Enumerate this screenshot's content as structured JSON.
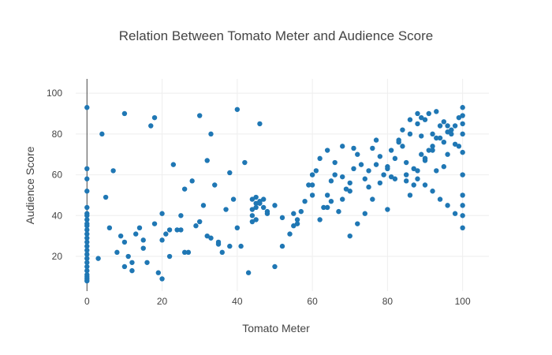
{
  "chart_data": {
    "type": "scatter",
    "title": "Relation Between Tomato Meter and Audience Score",
    "xlabel": "Tomato Meter",
    "ylabel": "Audience Score",
    "xlim": [
      -3,
      107
    ],
    "ylim": [
      3,
      107
    ],
    "x_ticks": [
      0,
      20,
      40,
      60,
      80,
      100
    ],
    "y_ticks": [
      20,
      40,
      60,
      80,
      100
    ],
    "grid": true,
    "legend": "none",
    "marker_color": "#1f77b4",
    "series": [
      {
        "x": [
          0,
          0,
          0,
          0,
          0,
          0,
          0,
          0,
          0,
          0,
          0,
          0,
          0,
          0,
          0,
          0,
          0,
          0,
          0,
          0,
          0,
          0,
          0,
          0,
          0,
          3,
          4,
          5,
          6,
          7,
          8,
          9,
          10,
          10,
          11,
          12,
          13,
          14,
          15,
          16,
          17,
          18,
          19,
          20,
          18,
          20,
          21,
          22,
          23,
          24,
          25,
          26,
          27,
          28,
          29,
          30,
          31,
          32,
          33,
          32,
          34,
          35,
          36,
          37,
          38,
          39,
          40,
          41,
          42,
          43,
          44,
          45,
          46,
          44,
          45,
          46,
          47,
          48,
          44,
          46,
          48,
          45,
          47,
          50,
          52,
          54,
          55,
          56,
          57,
          58,
          59,
          60,
          61,
          62,
          63,
          64,
          65,
          66,
          67,
          68,
          69,
          60,
          62,
          64,
          66,
          68,
          70,
          71,
          72,
          73,
          74,
          75,
          76,
          77,
          78,
          79,
          80,
          70,
          72,
          74,
          76,
          78,
          80,
          81,
          82,
          83,
          84,
          85,
          86,
          87,
          88,
          89,
          90,
          82,
          84,
          86,
          88,
          90,
          91,
          92,
          93,
          94,
          95,
          96,
          97,
          98,
          99,
          85,
          87,
          89,
          91,
          93,
          95,
          97,
          99,
          100,
          100,
          100,
          100,
          100,
          100,
          100,
          100,
          100,
          88,
          90,
          92,
          94,
          96,
          98,
          86,
          88,
          90,
          92,
          94,
          96,
          98,
          20,
          30,
          40,
          50,
          60,
          70,
          80,
          90,
          100,
          15,
          25,
          35,
          45,
          55,
          65,
          75,
          85,
          95,
          10,
          22,
          33,
          44,
          56,
          68,
          71,
          83,
          92,
          96,
          12,
          26,
          38,
          52,
          64,
          77,
          81,
          89,
          93
        ],
        "y": [
          93,
          63,
          58,
          52,
          44,
          41,
          38,
          35,
          33,
          31,
          29,
          27,
          25,
          23,
          21,
          19,
          17,
          15,
          13,
          11,
          10,
          9,
          8,
          40,
          36,
          19,
          80,
          49,
          34,
          62,
          22,
          30,
          15,
          90,
          20,
          13,
          31,
          34,
          24,
          17,
          84,
          88,
          12,
          9,
          36,
          28,
          31,
          20,
          65,
          33,
          40,
          53,
          22,
          57,
          35,
          89,
          45,
          67,
          80,
          30,
          55,
          27,
          22,
          43,
          61,
          48,
          92,
          25,
          66,
          12,
          37,
          46,
          85,
          43,
          49,
          47,
          44,
          42,
          40,
          46,
          41,
          38,
          48,
          15,
          25,
          31,
          35,
          38,
          42,
          47,
          55,
          60,
          62,
          38,
          44,
          50,
          57,
          66,
          42,
          48,
          53,
          55,
          68,
          72,
          60,
          74,
          52,
          63,
          70,
          65,
          58,
          62,
          73,
          77,
          69,
          60,
          64,
          30,
          36,
          41,
          48,
          56,
          43,
          72,
          68,
          77,
          82,
          60,
          87,
          55,
          90,
          79,
          67,
          58,
          74,
          80,
          85,
          87,
          90,
          72,
          78,
          84,
          86,
          70,
          80,
          75,
          88,
          66,
          63,
          70,
          72,
          62,
          76,
          82,
          74,
          80,
          85,
          89,
          93,
          60,
          50,
          45,
          40,
          34,
          62,
          68,
          74,
          78,
          81,
          84,
          50,
          58,
          55,
          52,
          48,
          45,
          41,
          41,
          37,
          34,
          45,
          50,
          56,
          63,
          68,
          71,
          28,
          33,
          26,
          44,
          41,
          47,
          54,
          57,
          64,
          27,
          33,
          29,
          48,
          36,
          59,
          73,
          76,
          80,
          84,
          17,
          22,
          25,
          39,
          44,
          65,
          59,
          88,
          91
        ]
      }
    ]
  }
}
